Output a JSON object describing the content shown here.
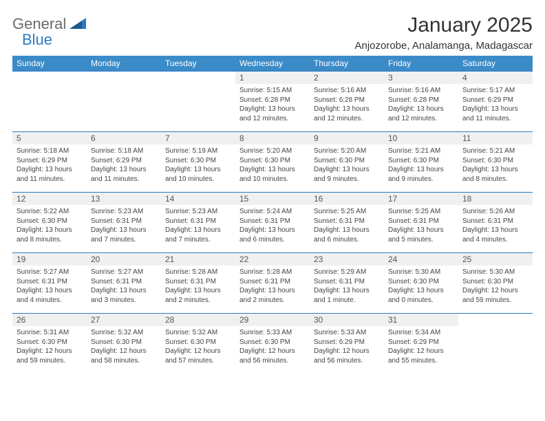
{
  "brand": {
    "part1": "General",
    "part2": "Blue"
  },
  "title": "January 2025",
  "location": "Anjozorobe, Analamanga, Madagascar",
  "colors": {
    "header_bg": "#3b8bc9",
    "header_text": "#ffffff",
    "border": "#2a7ac0",
    "daynum_bg": "#f0f0f0",
    "text": "#333333",
    "logo_gray": "#6a6a6a",
    "logo_blue": "#2a7ac0"
  },
  "weekdays": [
    "Sunday",
    "Monday",
    "Tuesday",
    "Wednesday",
    "Thursday",
    "Friday",
    "Saturday"
  ],
  "weeks": [
    [
      {
        "n": "",
        "rise": "",
        "set": "",
        "day": ""
      },
      {
        "n": "",
        "rise": "",
        "set": "",
        "day": ""
      },
      {
        "n": "",
        "rise": "",
        "set": "",
        "day": ""
      },
      {
        "n": "1",
        "rise": "5:15 AM",
        "set": "6:28 PM",
        "day": "13 hours and 12 minutes."
      },
      {
        "n": "2",
        "rise": "5:16 AM",
        "set": "6:28 PM",
        "day": "13 hours and 12 minutes."
      },
      {
        "n": "3",
        "rise": "5:16 AM",
        "set": "6:28 PM",
        "day": "13 hours and 12 minutes."
      },
      {
        "n": "4",
        "rise": "5:17 AM",
        "set": "6:29 PM",
        "day": "13 hours and 11 minutes."
      }
    ],
    [
      {
        "n": "5",
        "rise": "5:18 AM",
        "set": "6:29 PM",
        "day": "13 hours and 11 minutes."
      },
      {
        "n": "6",
        "rise": "5:18 AM",
        "set": "6:29 PM",
        "day": "13 hours and 11 minutes."
      },
      {
        "n": "7",
        "rise": "5:19 AM",
        "set": "6:30 PM",
        "day": "13 hours and 10 minutes."
      },
      {
        "n": "8",
        "rise": "5:20 AM",
        "set": "6:30 PM",
        "day": "13 hours and 10 minutes."
      },
      {
        "n": "9",
        "rise": "5:20 AM",
        "set": "6:30 PM",
        "day": "13 hours and 9 minutes."
      },
      {
        "n": "10",
        "rise": "5:21 AM",
        "set": "6:30 PM",
        "day": "13 hours and 9 minutes."
      },
      {
        "n": "11",
        "rise": "5:21 AM",
        "set": "6:30 PM",
        "day": "13 hours and 8 minutes."
      }
    ],
    [
      {
        "n": "12",
        "rise": "5:22 AM",
        "set": "6:30 PM",
        "day": "13 hours and 8 minutes."
      },
      {
        "n": "13",
        "rise": "5:23 AM",
        "set": "6:31 PM",
        "day": "13 hours and 7 minutes."
      },
      {
        "n": "14",
        "rise": "5:23 AM",
        "set": "6:31 PM",
        "day": "13 hours and 7 minutes."
      },
      {
        "n": "15",
        "rise": "5:24 AM",
        "set": "6:31 PM",
        "day": "13 hours and 6 minutes."
      },
      {
        "n": "16",
        "rise": "5:25 AM",
        "set": "6:31 PM",
        "day": "13 hours and 6 minutes."
      },
      {
        "n": "17",
        "rise": "5:25 AM",
        "set": "6:31 PM",
        "day": "13 hours and 5 minutes."
      },
      {
        "n": "18",
        "rise": "5:26 AM",
        "set": "6:31 PM",
        "day": "13 hours and 4 minutes."
      }
    ],
    [
      {
        "n": "19",
        "rise": "5:27 AM",
        "set": "6:31 PM",
        "day": "13 hours and 4 minutes."
      },
      {
        "n": "20",
        "rise": "5:27 AM",
        "set": "6:31 PM",
        "day": "13 hours and 3 minutes."
      },
      {
        "n": "21",
        "rise": "5:28 AM",
        "set": "6:31 PM",
        "day": "13 hours and 2 minutes."
      },
      {
        "n": "22",
        "rise": "5:28 AM",
        "set": "6:31 PM",
        "day": "13 hours and 2 minutes."
      },
      {
        "n": "23",
        "rise": "5:29 AM",
        "set": "6:31 PM",
        "day": "13 hours and 1 minute."
      },
      {
        "n": "24",
        "rise": "5:30 AM",
        "set": "6:30 PM",
        "day": "13 hours and 0 minutes."
      },
      {
        "n": "25",
        "rise": "5:30 AM",
        "set": "6:30 PM",
        "day": "12 hours and 59 minutes."
      }
    ],
    [
      {
        "n": "26",
        "rise": "5:31 AM",
        "set": "6:30 PM",
        "day": "12 hours and 59 minutes."
      },
      {
        "n": "27",
        "rise": "5:32 AM",
        "set": "6:30 PM",
        "day": "12 hours and 58 minutes."
      },
      {
        "n": "28",
        "rise": "5:32 AM",
        "set": "6:30 PM",
        "day": "12 hours and 57 minutes."
      },
      {
        "n": "29",
        "rise": "5:33 AM",
        "set": "6:30 PM",
        "day": "12 hours and 56 minutes."
      },
      {
        "n": "30",
        "rise": "5:33 AM",
        "set": "6:29 PM",
        "day": "12 hours and 56 minutes."
      },
      {
        "n": "31",
        "rise": "5:34 AM",
        "set": "6:29 PM",
        "day": "12 hours and 55 minutes."
      },
      {
        "n": "",
        "rise": "",
        "set": "",
        "day": ""
      }
    ]
  ],
  "labels": {
    "sunrise": "Sunrise:",
    "sunset": "Sunset:",
    "daylight": "Daylight:"
  }
}
